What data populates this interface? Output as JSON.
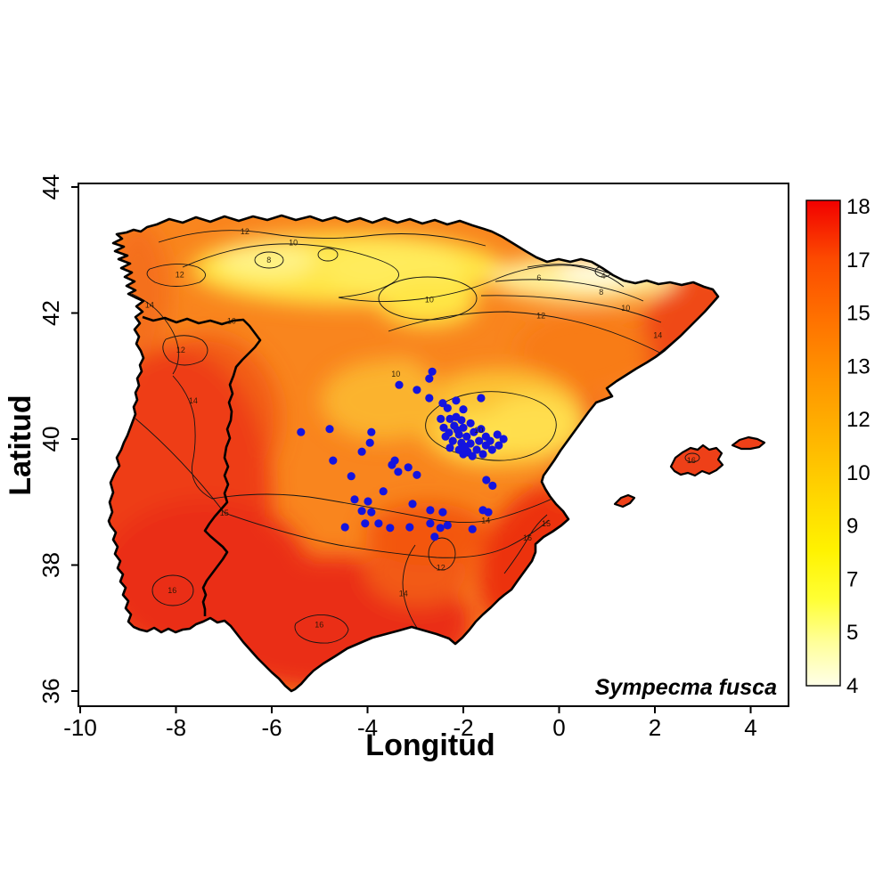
{
  "figure": {
    "species_label": "Sympecma fusca",
    "axes": {
      "xlabel": "Longitud",
      "ylabel": "Latitud",
      "x_ticks": [
        -10,
        -8,
        -6,
        -4,
        -2,
        0,
        2,
        4
      ],
      "y_ticks": [
        36,
        38,
        40,
        42,
        44
      ]
    },
    "colorbar_ticks_top_to_bottom": [
      18,
      17,
      15,
      13,
      12,
      10,
      9,
      7,
      5,
      4
    ],
    "colors": {
      "point_blue": "#1414DF",
      "land_base_orange": "#F9851E",
      "hot_red": "#EA2D12",
      "warm_yellow": "#FFE545",
      "cool_cream": "#FFFDE9"
    }
  },
  "chart_data": {
    "type": "heatmap",
    "title": "",
    "xlabel": "Longitud",
    "ylabel": "Latitud",
    "xlim": [
      -10.1,
      4.8
    ],
    "ylim": [
      35.8,
      44.1
    ],
    "colorbar": {
      "min": 4,
      "max": 18,
      "tick_labels_top_to_bottom": [
        18,
        17,
        15,
        13,
        12,
        10,
        9,
        7,
        5,
        4
      ]
    },
    "contour_levels_labeled": [
      4,
      6,
      8,
      10,
      12,
      14,
      15,
      16
    ],
    "contour_labels": [
      {
        "value": 12,
        "lon": -6.56,
        "lat": 43.29
      },
      {
        "value": 10,
        "lon": -5.55,
        "lat": 43.12
      },
      {
        "value": 8,
        "lon": -6.06,
        "lat": 42.84
      },
      {
        "value": 10,
        "lon": -2.71,
        "lat": 42.21
      },
      {
        "value": 6,
        "lon": -0.42,
        "lat": 42.56
      },
      {
        "value": 4,
        "lon": 0.92,
        "lat": 42.59
      },
      {
        "value": 8,
        "lon": 0.88,
        "lat": 42.33
      },
      {
        "value": 10,
        "lon": 1.39,
        "lat": 42.08
      },
      {
        "value": 12,
        "lon": -0.38,
        "lat": 41.96
      },
      {
        "value": 14,
        "lon": 2.06,
        "lat": 41.65
      },
      {
        "value": 12,
        "lon": -7.92,
        "lat": 42.61
      },
      {
        "value": 14,
        "lon": -8.55,
        "lat": 42.13
      },
      {
        "value": 10,
        "lon": -6.84,
        "lat": 41.87
      },
      {
        "value": 12,
        "lon": -7.9,
        "lat": 41.41
      },
      {
        "value": 14,
        "lon": -7.64,
        "lat": 40.61
      },
      {
        "value": 15,
        "lon": -6.99,
        "lat": 38.83
      },
      {
        "value": 16,
        "lon": -8.08,
        "lat": 37.6
      },
      {
        "value": 16,
        "lon": -5.01,
        "lat": 37.05
      },
      {
        "value": 12,
        "lon": -2.47,
        "lat": 37.96
      },
      {
        "value": 14,
        "lon": -3.25,
        "lat": 37.55
      },
      {
        "value": 14,
        "lon": -1.53,
        "lat": 38.71
      },
      {
        "value": 16,
        "lon": -0.66,
        "lat": 38.43
      },
      {
        "value": 15,
        "lon": -0.27,
        "lat": 38.66
      },
      {
        "value": 10,
        "lon": -3.41,
        "lat": 41.03
      },
      {
        "value": 10,
        "lon": -1.68,
        "lat": 40.14
      },
      {
        "value": 16,
        "lon": 2.76,
        "lat": 39.66
      }
    ],
    "series": [
      {
        "name": "Sympecma fusca occurrences",
        "type": "scatter",
        "color": "#1414DF",
        "points": [
          [
            -2.65,
            41.07
          ],
          [
            -2.71,
            40.96
          ],
          [
            -3.34,
            40.86
          ],
          [
            -2.97,
            40.78
          ],
          [
            -2.71,
            40.65
          ],
          [
            -2.15,
            40.61
          ],
          [
            -2.33,
            40.49
          ],
          [
            -2.0,
            40.47
          ],
          [
            -1.63,
            40.65
          ],
          [
            -2.28,
            40.32
          ],
          [
            -2.15,
            40.35
          ],
          [
            -2.04,
            40.3
          ],
          [
            -2.19,
            40.21
          ],
          [
            -2.0,
            40.18
          ],
          [
            -1.85,
            40.25
          ],
          [
            -2.09,
            40.07
          ],
          [
            -1.93,
            40.04
          ],
          [
            -1.78,
            40.11
          ],
          [
            -1.63,
            40.16
          ],
          [
            -1.53,
            40.04
          ],
          [
            -1.67,
            39.97
          ],
          [
            -1.85,
            39.93
          ],
          [
            -2.04,
            39.94
          ],
          [
            -2.22,
            39.97
          ],
          [
            -2.37,
            40.04
          ],
          [
            -2.28,
            39.86
          ],
          [
            -2.09,
            39.83
          ],
          [
            -1.91,
            39.8
          ],
          [
            -1.72,
            39.83
          ],
          [
            -1.53,
            39.9
          ],
          [
            -1.44,
            39.97
          ],
          [
            -1.4,
            39.83
          ],
          [
            -1.59,
            39.76
          ],
          [
            -1.81,
            39.73
          ],
          [
            -2.0,
            39.76
          ],
          [
            -1.26,
            39.9
          ],
          [
            -1.16,
            40.0
          ],
          [
            -1.29,
            40.07
          ],
          [
            -2.41,
            40.18
          ],
          [
            -2.47,
            40.32
          ],
          [
            -2.12,
            40.14
          ],
          [
            -1.96,
            39.88
          ],
          [
            -2.3,
            40.1
          ],
          [
            -2.43,
            40.57
          ],
          [
            -5.39,
            40.11
          ],
          [
            -4.79,
            40.16
          ],
          [
            -3.92,
            40.11
          ],
          [
            -3.95,
            39.94
          ],
          [
            -4.12,
            39.8
          ],
          [
            -4.72,
            39.66
          ],
          [
            -3.43,
            39.66
          ],
          [
            -3.49,
            39.59
          ],
          [
            -3.36,
            39.48
          ],
          [
            -3.15,
            39.55
          ],
          [
            -2.97,
            39.43
          ],
          [
            -4.34,
            39.41
          ],
          [
            -1.39,
            39.26
          ],
          [
            -1.52,
            39.35
          ],
          [
            -3.67,
            39.17
          ],
          [
            -4.27,
            39.04
          ],
          [
            -3.99,
            39.01
          ],
          [
            -3.06,
            38.97
          ],
          [
            -4.12,
            38.86
          ],
          [
            -3.92,
            38.84
          ],
          [
            -2.69,
            38.87
          ],
          [
            -2.43,
            38.84
          ],
          [
            -1.59,
            38.87
          ],
          [
            -1.48,
            38.84
          ],
          [
            -2.69,
            38.66
          ],
          [
            -2.48,
            38.59
          ],
          [
            -2.33,
            38.63
          ],
          [
            -4.47,
            38.6
          ],
          [
            -4.05,
            38.66
          ],
          [
            -3.77,
            38.66
          ],
          [
            -3.53,
            38.59
          ],
          [
            -3.12,
            38.6
          ],
          [
            -1.81,
            38.57
          ],
          [
            -2.6,
            38.45
          ]
        ]
      }
    ]
  }
}
